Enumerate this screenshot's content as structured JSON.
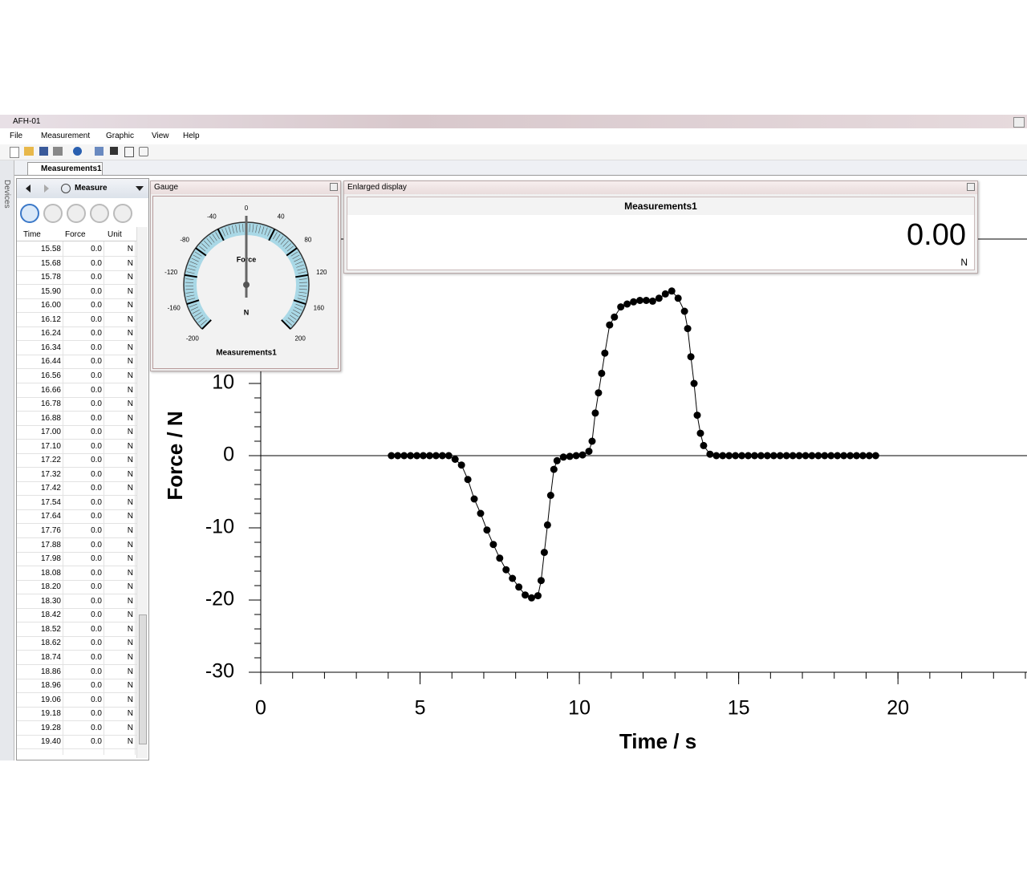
{
  "window": {
    "title": "AFH-01",
    "menu": [
      "File",
      "Measurement",
      "Graphic",
      "View",
      "Help"
    ],
    "tab": "Measurements1",
    "sidebar": "Devices"
  },
  "table": {
    "mode": "Measure",
    "columns": [
      "Time",
      "Force",
      "Unit"
    ],
    "rows": [
      [
        "15.58",
        "0.0",
        "N"
      ],
      [
        "15.68",
        "0.0",
        "N"
      ],
      [
        "15.78",
        "0.0",
        "N"
      ],
      [
        "15.90",
        "0.0",
        "N"
      ],
      [
        "16.00",
        "0.0",
        "N"
      ],
      [
        "16.12",
        "0.0",
        "N"
      ],
      [
        "16.24",
        "0.0",
        "N"
      ],
      [
        "16.34",
        "0.0",
        "N"
      ],
      [
        "16.44",
        "0.0",
        "N"
      ],
      [
        "16.56",
        "0.0",
        "N"
      ],
      [
        "16.66",
        "0.0",
        "N"
      ],
      [
        "16.78",
        "0.0",
        "N"
      ],
      [
        "16.88",
        "0.0",
        "N"
      ],
      [
        "17.00",
        "0.0",
        "N"
      ],
      [
        "17.10",
        "0.0",
        "N"
      ],
      [
        "17.22",
        "0.0",
        "N"
      ],
      [
        "17.32",
        "0.0",
        "N"
      ],
      [
        "17.42",
        "0.0",
        "N"
      ],
      [
        "17.54",
        "0.0",
        "N"
      ],
      [
        "17.64",
        "0.0",
        "N"
      ],
      [
        "17.76",
        "0.0",
        "N"
      ],
      [
        "17.88",
        "0.0",
        "N"
      ],
      [
        "17.98",
        "0.0",
        "N"
      ],
      [
        "18.08",
        "0.0",
        "N"
      ],
      [
        "18.20",
        "0.0",
        "N"
      ],
      [
        "18.30",
        "0.0",
        "N"
      ],
      [
        "18.42",
        "0.0",
        "N"
      ],
      [
        "18.52",
        "0.0",
        "N"
      ],
      [
        "18.62",
        "0.0",
        "N"
      ],
      [
        "18.74",
        "0.0",
        "N"
      ],
      [
        "18.86",
        "0.0",
        "N"
      ],
      [
        "18.96",
        "0.0",
        "N"
      ],
      [
        "19.06",
        "0.0",
        "N"
      ],
      [
        "19.18",
        "0.0",
        "N"
      ],
      [
        "19.28",
        "0.0",
        "N"
      ],
      [
        "19.40",
        "0.0",
        "N"
      ]
    ]
  },
  "gauge": {
    "title": "Gauge",
    "label": "Force",
    "unit": "N",
    "source": "Measurements1",
    "ticks": [
      -200,
      -160,
      -120,
      -80,
      -40,
      0,
      40,
      80,
      120,
      160,
      200
    ],
    "value": 0
  },
  "enlarged": {
    "title": "Enlarged display",
    "source": "Measurements1",
    "value": "0.00",
    "unit": "N"
  },
  "chart_data": {
    "type": "line",
    "xlabel": "Time / s",
    "ylabel": "Force / N",
    "color": "#000000",
    "markers": true,
    "zero_line": true,
    "x": [
      4.1,
      4.3,
      4.5,
      4.7,
      4.9,
      5.1,
      5.3,
      5.5,
      5.7,
      5.9,
      6.1,
      6.3,
      6.5,
      6.7,
      6.9,
      7.1,
      7.3,
      7.5,
      7.7,
      7.9,
      8.1,
      8.3,
      8.5,
      8.7,
      8.8,
      8.9,
      9.0,
      9.1,
      9.2,
      9.3,
      9.5,
      9.7,
      9.9,
      10.1,
      10.3,
      10.4,
      10.5,
      10.6,
      10.7,
      10.8,
      10.95,
      11.1,
      11.3,
      11.5,
      11.7,
      11.9,
      12.1,
      12.3,
      12.5,
      12.7,
      12.9,
      13.1,
      13.3,
      13.4,
      13.5,
      13.6,
      13.7,
      13.8,
      13.9,
      14.1,
      14.3,
      14.5,
      14.7,
      14.9,
      15.1,
      15.3,
      15.5,
      15.7,
      15.9,
      16.1,
      16.3,
      16.5,
      16.7,
      16.9,
      17.1,
      17.3,
      17.5,
      17.7,
      17.9,
      18.1,
      18.3,
      18.5,
      18.7,
      18.9,
      19.1,
      19.3
    ],
    "values": [
      0,
      0,
      0,
      0,
      0,
      0,
      0,
      0,
      0,
      0,
      -0.5,
      -1.3,
      -3.3,
      -6,
      -8,
      -10.3,
      -12.3,
      -14.2,
      -15.8,
      -17,
      -18.2,
      -19.3,
      -19.7,
      -19.4,
      -17.3,
      -13.4,
      -9.6,
      -5.5,
      -1.9,
      -0.7,
      -0.2,
      -0.1,
      0,
      0.1,
      0.6,
      2,
      5.9,
      8.7,
      11.4,
      14.2,
      18.1,
      19.2,
      20.6,
      21,
      21.3,
      21.5,
      21.5,
      21.4,
      21.8,
      22.4,
      22.8,
      21.8,
      20,
      17.6,
      13.7,
      10,
      5.6,
      3.1,
      1.4,
      0.2,
      0,
      0,
      0,
      0,
      0,
      0,
      0,
      0,
      0,
      0,
      0,
      0,
      0,
      0,
      0,
      0,
      0,
      0,
      0,
      0,
      0,
      0,
      0,
      0,
      0,
      0
    ],
    "xlim": [
      0,
      24
    ],
    "ylim": [
      -30,
      30
    ],
    "xticks": [
      0,
      5,
      10,
      15,
      20
    ],
    "yticks": [
      -30,
      -20,
      -10,
      0,
      10
    ]
  }
}
